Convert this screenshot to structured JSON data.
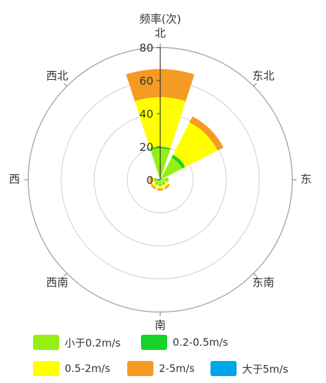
{
  "chart_data": {
    "type": "polar-stacked-bar",
    "title": "频率(次)",
    "categories": [
      "北",
      "东北",
      "东",
      "东南",
      "南",
      "西南",
      "西",
      "西北"
    ],
    "radial_axis": {
      "min": 0,
      "max": 80,
      "ticks": [
        "0",
        "20",
        "40",
        "60",
        "80"
      ],
      "grid": true
    },
    "series": [
      {
        "name": "小于0.2m/s",
        "color": "#95EE14",
        "values": [
          19,
          15,
          5,
          3,
          3,
          3,
          3,
          0
        ]
      },
      {
        "name": "0.2-0.5m/s",
        "color": "#15D425",
        "values": [
          1,
          2,
          0,
          0.5,
          0.5,
          0.5,
          0.5,
          0
        ]
      },
      {
        "name": "0.5-2m/s",
        "color": "#FFFF00",
        "values": [
          30,
          22,
          0,
          2,
          2,
          2,
          2,
          0
        ]
      },
      {
        "name": "2-5m/s",
        "color": "#F59A23",
        "values": [
          17,
          4,
          0,
          1,
          1,
          1,
          1,
          0
        ]
      },
      {
        "name": "大于5m/s",
        "color": "#00A6E8",
        "values": [
          0,
          0,
          0,
          0,
          0,
          0,
          0,
          0
        ]
      }
    ],
    "legend_position": "bottom"
  }
}
